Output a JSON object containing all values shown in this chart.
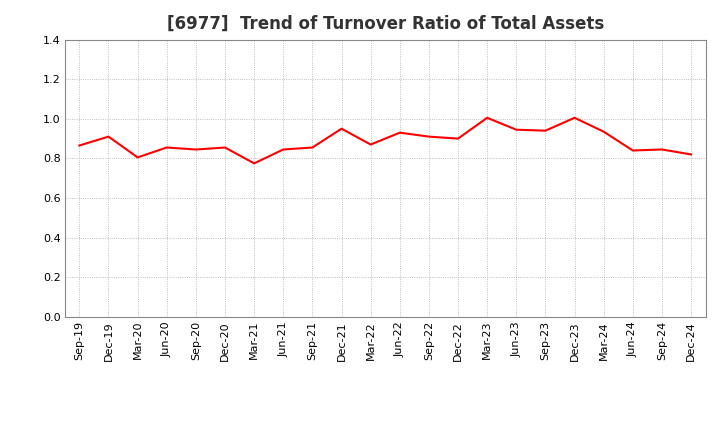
{
  "title": "[6977]  Trend of Turnover Ratio of Total Assets",
  "x_labels": [
    "Sep-19",
    "Dec-19",
    "Mar-20",
    "Jun-20",
    "Sep-20",
    "Dec-20",
    "Mar-21",
    "Jun-21",
    "Sep-21",
    "Dec-21",
    "Mar-22",
    "Jun-22",
    "Sep-22",
    "Dec-22",
    "Mar-23",
    "Jun-23",
    "Sep-23",
    "Dec-23",
    "Mar-24",
    "Jun-24",
    "Sep-24",
    "Dec-24"
  ],
  "values": [
    0.865,
    0.91,
    0.805,
    0.855,
    0.845,
    0.855,
    0.775,
    0.845,
    0.855,
    0.95,
    0.87,
    0.93,
    0.91,
    0.9,
    1.005,
    0.945,
    0.94,
    1.005,
    0.935,
    0.84,
    0.845,
    0.82
  ],
  "line_color": "#ff0000",
  "line_width": 1.5,
  "ylim": [
    0.0,
    1.4
  ],
  "yticks": [
    0.0,
    0.2,
    0.4,
    0.6,
    0.8,
    1.0,
    1.2,
    1.4
  ],
  "grid_color": "#aaaaaa",
  "background_color": "#ffffff",
  "title_fontsize": 12,
  "title_color": "#333333",
  "tick_fontsize": 8,
  "fig_width": 7.2,
  "fig_height": 4.4,
  "dpi": 100
}
